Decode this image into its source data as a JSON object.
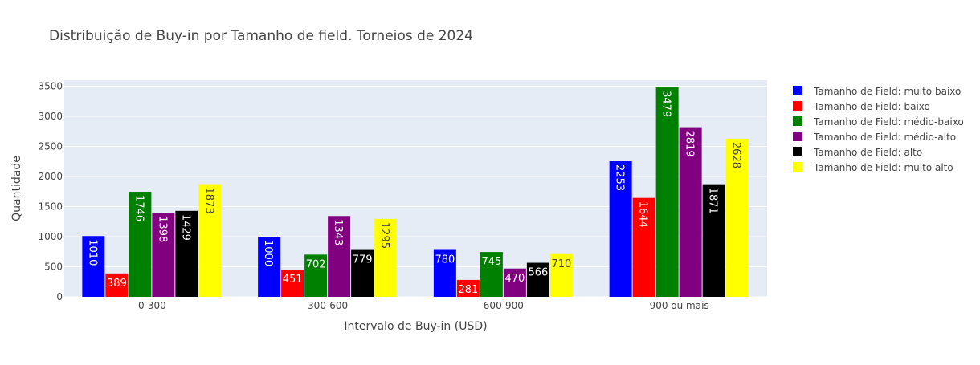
{
  "chart_data": {
    "type": "bar",
    "title": "Distribuição de Buy-in por Tamanho de field. Torneios de 2024",
    "xlabel": "Intervalo de Buy-in (USD)",
    "ylabel": "Quantidade",
    "categories": [
      "0-300",
      "300-600",
      "600-900",
      "900 ou mais"
    ],
    "ylim": [
      0,
      3600
    ],
    "yticks": [
      0,
      500,
      1000,
      1500,
      2000,
      2500,
      3000,
      3500
    ],
    "grid": true,
    "legend_position": "right",
    "series": [
      {
        "name": "Tamanho de Field: muito baixo",
        "color": "#0000ff",
        "label_color": "#ffffff",
        "values": [
          1010,
          1000,
          780,
          2253
        ]
      },
      {
        "name": "Tamanho de Field: baixo",
        "color": "#ff0000",
        "label_color": "#ffffff",
        "values": [
          389,
          451,
          281,
          1644
        ]
      },
      {
        "name": "Tamanho de Field: médio-baixo",
        "color": "#008000",
        "label_color": "#ffffff",
        "values": [
          1746,
          702,
          745,
          3479
        ]
      },
      {
        "name": "Tamanho de Field: médio-alto",
        "color": "#800080",
        "label_color": "#ffffff",
        "values": [
          1398,
          1343,
          470,
          2819
        ]
      },
      {
        "name": "Tamanho de Field: alto",
        "color": "#000000",
        "label_color": "#ffffff",
        "values": [
          1429,
          779,
          566,
          1871
        ]
      },
      {
        "name": "Tamanho de Field: muito alto",
        "color": "#ffff00",
        "label_color": "#444444",
        "values": [
          1873,
          1295,
          710,
          2628
        ]
      }
    ]
  }
}
